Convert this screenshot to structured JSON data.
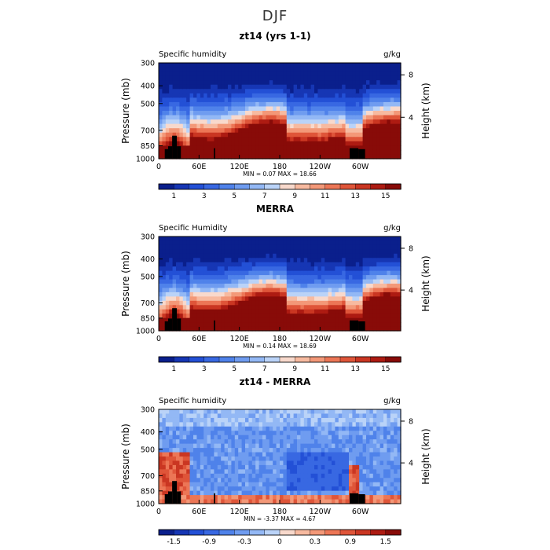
{
  "suptitle": "DJF",
  "chart_data": [
    {
      "type": "heatmap",
      "title": "zt14 (yrs 1-1)",
      "left_label": "Specific humidity",
      "right_label": "g/kg",
      "ylabel": "Pressure (mb)",
      "ylabel_right": "Height (km)",
      "x_ticks": [
        "0",
        "60E",
        "120E",
        "180",
        "120W",
        "60W"
      ],
      "x_range": [
        0,
        360
      ],
      "y_ticks": [
        "300",
        "400",
        "500",
        "700",
        "850",
        "1000"
      ],
      "y_range": [
        300,
        1000
      ],
      "y_scale": "log",
      "y_right_ticks": [
        "8",
        "4"
      ],
      "stats": "MIN =    0.07   MAX =   18.66",
      "colorbar_ticks": [
        "1",
        "3",
        "5",
        "7",
        "9",
        "11",
        "13",
        "15"
      ],
      "levels": [
        0,
        1,
        2,
        3,
        4,
        5,
        6,
        7,
        8,
        9,
        10,
        11,
        12,
        13,
        14,
        15,
        16
      ],
      "min": 0.07,
      "max": 18.66,
      "palette": "diverging_blue_red"
    },
    {
      "type": "heatmap",
      "title": "MERRA",
      "left_label": "Specific Humidity",
      "right_label": "g/kg",
      "ylabel": "Pressure (mb)",
      "ylabel_right": "Height (km)",
      "x_ticks": [
        "0",
        "60E",
        "120E",
        "180",
        "120W",
        "60W"
      ],
      "x_range": [
        0,
        360
      ],
      "y_ticks": [
        "300",
        "400",
        "500",
        "700",
        "850",
        "1000"
      ],
      "y_range": [
        300,
        1000
      ],
      "y_scale": "log",
      "y_right_ticks": [
        "8",
        "4"
      ],
      "stats": "MIN =    0.14   MAX =   18.69",
      "colorbar_ticks": [
        "1",
        "3",
        "5",
        "7",
        "9",
        "11",
        "13",
        "15"
      ],
      "levels": [
        0,
        1,
        2,
        3,
        4,
        5,
        6,
        7,
        8,
        9,
        10,
        11,
        12,
        13,
        14,
        15,
        16
      ],
      "min": 0.14,
      "max": 18.69,
      "palette": "diverging_blue_red"
    },
    {
      "type": "heatmap",
      "title": "zt14 - MERRA",
      "left_label": "Specific humidity",
      "right_label": "g/kg",
      "ylabel": "Pressure (mb)",
      "ylabel_right": "Height (km)",
      "x_ticks": [
        "0",
        "60E",
        "120E",
        "180",
        "120W",
        "60W"
      ],
      "x_range": [
        0,
        360
      ],
      "y_ticks": [
        "300",
        "400",
        "500",
        "700",
        "850",
        "1000"
      ],
      "y_range": [
        300,
        1000
      ],
      "y_scale": "log",
      "y_right_ticks": [
        "8",
        "4"
      ],
      "stats": "MIN =   -3.37   MAX =    4.67",
      "colorbar_ticks": [
        "-1.5",
        "-0.9",
        "-0.3",
        "0",
        "0.3",
        "0.9",
        "1.5"
      ],
      "levels": [
        -2.1,
        -1.8,
        -1.5,
        -1.2,
        -0.9,
        -0.6,
        -0.3,
        -0.1,
        0,
        0.1,
        0.3,
        0.6,
        0.9,
        1.2,
        1.5,
        1.8,
        2.1
      ],
      "min": -3.37,
      "max": 4.67,
      "palette": "diverging_blue_red"
    }
  ]
}
